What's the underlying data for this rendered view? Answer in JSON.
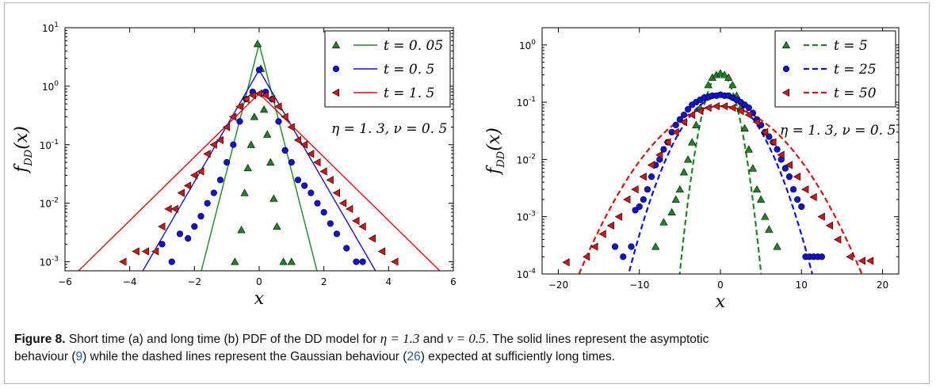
{
  "chart_data": [
    {
      "type": "scatter",
      "panel": "a",
      "xlabel": "x",
      "ylabel": "f_DD(x)",
      "xlim": [
        -6,
        6
      ],
      "ylim": [
        0.0007,
        10
      ],
      "yscale": "log",
      "xticks": [
        -6,
        -4,
        -2,
        0,
        2,
        4,
        6
      ],
      "xtick_labels": [
        "−6",
        "−4",
        "−2",
        "0",
        "2",
        "4",
        "6"
      ],
      "yticks": [
        0.001,
        0.01,
        0.1,
        1,
        10
      ],
      "ytick_mant": [
        "10",
        "10",
        "10",
        "10",
        "10"
      ],
      "ytick_exp": [
        "-3",
        "-2",
        "-1",
        "0",
        "1"
      ],
      "grid": false,
      "legend_position": "top-right",
      "annotation": "η = 1. 3,  ν = 0. 5",
      "series": [
        {
          "name": "t = 0. 05",
          "color": "#1a8a1a",
          "marker": "triangle-up",
          "line": "solid",
          "slope": 5.0,
          "peak": 5.3,
          "x": [
            -0.75,
            -0.55,
            -0.45,
            -0.35,
            -0.25,
            -0.15,
            -0.05,
            0.05,
            0.15,
            0.25,
            0.35,
            0.45,
            0.55,
            0.75,
            1.0
          ],
          "y": [
            0.001,
            0.0035,
            0.015,
            0.04,
            0.1,
            0.3,
            5.3,
            2.0,
            0.4,
            0.15,
            0.05,
            0.012,
            0.004,
            0.001,
            0.001
          ]
        },
        {
          "name": "t = 0. 5",
          "color": "#1010dd",
          "marker": "circle",
          "line": "solid",
          "slope": 2.2,
          "peak": 1.9,
          "x": [
            -3.0,
            -2.7,
            -2.45,
            -2.2,
            -2.0,
            -1.8,
            -1.6,
            -1.4,
            -1.2,
            -1.0,
            -0.8,
            -0.6,
            -0.4,
            -0.2,
            0.0,
            0.2,
            0.4,
            0.6,
            0.8,
            1.0,
            1.2,
            1.4,
            1.6,
            1.8,
            2.0,
            2.2,
            2.4,
            2.7,
            3.0,
            3.2
          ],
          "y": [
            0.002,
            0.001,
            0.003,
            0.0025,
            0.004,
            0.006,
            0.01,
            0.015,
            0.025,
            0.05,
            0.1,
            0.25,
            0.6,
            0.8,
            1.9,
            0.8,
            0.6,
            0.25,
            0.08,
            0.05,
            0.025,
            0.02,
            0.015,
            0.01,
            0.007,
            0.0045,
            0.003,
            0.0017,
            0.001,
            0.001
          ]
        },
        {
          "name": "t = 1. 5",
          "color": "#dd1010",
          "marker": "triangle-left",
          "line": "solid",
          "slope": 1.25,
          "peak": 0.75,
          "x": [
            -4.2,
            -3.8,
            -3.5,
            -3.2,
            -3.0,
            -2.8,
            -2.6,
            -2.4,
            -2.2,
            -2.0,
            -1.8,
            -1.6,
            -1.4,
            -1.2,
            -1.0,
            -0.8,
            -0.6,
            -0.4,
            -0.2,
            0.0,
            0.2,
            0.4,
            0.6,
            0.8,
            1.0,
            1.2,
            1.4,
            1.6,
            1.8,
            2.0,
            2.2,
            2.4,
            2.6,
            2.8,
            3.0,
            3.2,
            3.5,
            3.8,
            4.2
          ],
          "y": [
            0.001,
            0.0015,
            0.0015,
            0.0015,
            0.004,
            0.008,
            0.008,
            0.015,
            0.02,
            0.03,
            0.035,
            0.07,
            0.1,
            0.12,
            0.2,
            0.3,
            0.45,
            0.6,
            0.7,
            0.75,
            0.7,
            0.6,
            0.45,
            0.3,
            0.2,
            0.12,
            0.1,
            0.07,
            0.05,
            0.035,
            0.025,
            0.015,
            0.01,
            0.008,
            0.005,
            0.004,
            0.0025,
            0.0015,
            0.001
          ]
        }
      ]
    },
    {
      "type": "scatter",
      "panel": "b",
      "xlabel": "x",
      "ylabel": "f_DD(x)",
      "xlim": [
        -22,
        22
      ],
      "ylim": [
        0.0001,
        2
      ],
      "yscale": "log",
      "xticks": [
        -20,
        -10,
        0,
        10,
        20
      ],
      "xtick_labels": [
        "−20",
        "−10",
        "0",
        "10",
        "20"
      ],
      "yticks": [
        0.0001,
        0.001,
        0.01,
        0.1,
        1
      ],
      "ytick_mant": [
        "10",
        "10",
        "10",
        "10",
        "10"
      ],
      "ytick_exp": [
        "-4",
        "-3",
        "-2",
        "-1",
        "0"
      ],
      "grid": false,
      "legend_position": "top-right",
      "annotation": "η = 1. 3,  ν = 0. 5",
      "series": [
        {
          "name": "t = 5",
          "color": "#1a8a1a",
          "marker": "triangle-up",
          "line": "dashed",
          "sigma": 1.25,
          "peak": 0.32,
          "x": [
            -8,
            -7,
            -6,
            -5.5,
            -5,
            -4.5,
            -4,
            -3.5,
            -3,
            -2.5,
            -2,
            -1.5,
            -1,
            -0.5,
            0,
            0.5,
            1,
            1.5,
            2,
            2.5,
            3,
            3.5,
            4,
            4.5,
            5,
            5.5,
            6,
            7
          ],
          "y": [
            0.0003,
            0.0008,
            0.0012,
            0.002,
            0.003,
            0.006,
            0.01,
            0.02,
            0.04,
            0.08,
            0.12,
            0.2,
            0.27,
            0.3,
            0.32,
            0.3,
            0.27,
            0.2,
            0.13,
            0.08,
            0.035,
            0.015,
            0.007,
            0.003,
            0.002,
            0.001,
            0.0006,
            0.0003
          ]
        },
        {
          "name": "t = 25",
          "color": "#1010dd",
          "marker": "circle",
          "line": "dashed",
          "sigma": 3.0,
          "peak": 0.125,
          "x": [
            -13,
            -12,
            -11,
            -10.5,
            -10,
            -9.5,
            -9,
            -8.5,
            -8,
            -7.5,
            -7,
            -6.5,
            -6,
            -5.5,
            -5,
            -4.5,
            -4,
            -3.5,
            -3,
            -2.5,
            -2,
            -1.5,
            -1,
            -0.5,
            0,
            0.5,
            1,
            1.5,
            2,
            2.5,
            3,
            3.5,
            4,
            4.5,
            5,
            5.5,
            6,
            6.5,
            7,
            7.5,
            8,
            8.5,
            9,
            9.5,
            10,
            10.5,
            11,
            11.5,
            12,
            12.5
          ],
          "y": [
            0.0003,
            0.0002,
            0.0003,
            0.0013,
            0.0015,
            0.002,
            0.003,
            0.005,
            0.008,
            0.01,
            0.015,
            0.02,
            0.03,
            0.04,
            0.05,
            0.06,
            0.075,
            0.09,
            0.1,
            0.11,
            0.12,
            0.125,
            0.13,
            0.13,
            0.135,
            0.13,
            0.13,
            0.12,
            0.11,
            0.1,
            0.09,
            0.08,
            0.065,
            0.05,
            0.04,
            0.03,
            0.025,
            0.02,
            0.015,
            0.01,
            0.007,
            0.005,
            0.003,
            0.002,
            0.0015,
            0.0002,
            0.0002,
            0.0002,
            0.0002,
            0.0002
          ]
        },
        {
          "name": "t = 50",
          "color": "#dd1010",
          "marker": "triangle-left",
          "line": "dashed",
          "sigma": 4.75,
          "peak": 0.085,
          "x": [
            -19,
            -16.5,
            -15.5,
            -14.5,
            -13.5,
            -12.5,
            -11.5,
            -10.5,
            -9.5,
            -8.5,
            -7.5,
            -6.5,
            -5.5,
            -4.5,
            -3.5,
            -2.5,
            -1.5,
            -0.5,
            0.5,
            1.5,
            2.5,
            3.5,
            4.5,
            5.5,
            6.5,
            7.5,
            8.5,
            9.5,
            10.5,
            11.5,
            12.5,
            13.5,
            14.5,
            16,
            17.5,
            18.5
          ],
          "y": [
            0.00016,
            0.0002,
            0.0003,
            0.0005,
            0.0007,
            0.001,
            0.002,
            0.003,
            0.005,
            0.008,
            0.012,
            0.02,
            0.03,
            0.045,
            0.06,
            0.07,
            0.08,
            0.085,
            0.085,
            0.08,
            0.07,
            0.06,
            0.045,
            0.03,
            0.02,
            0.012,
            0.008,
            0.005,
            0.003,
            0.0022,
            0.001,
            0.0007,
            0.0004,
            0.0002,
            0.00017,
            0.00017
          ]
        }
      ]
    }
  ],
  "caption": {
    "label": "Figure 8.",
    "text1": " Short time (a) and long time (b) PDF of the DD model for ",
    "eta": "η = 1.3",
    "and": " and ",
    "nu": "ν = 0.5",
    "text2": ". The solid lines represent the asymptotic",
    "text3": "behaviour (",
    "ref1": "9",
    "text4": ") while the dashed lines represent the Gaussian behaviour (",
    "ref2": "26",
    "text5": ") expected at sufficiently long times."
  }
}
